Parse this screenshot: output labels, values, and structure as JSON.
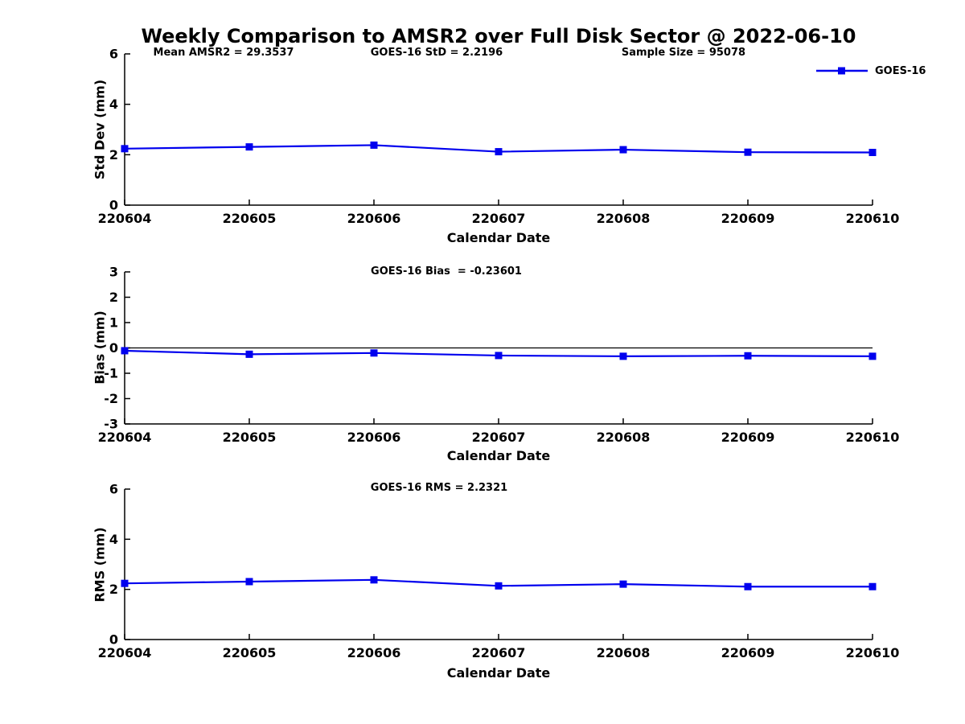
{
  "figure": {
    "title": "Weekly Comparison to AMSR2 over Full Disk Sector @ 2022-06-10",
    "background_color": "#ffffff",
    "axis_color": "#000000",
    "series_color": "#0000ee"
  },
  "legend": {
    "label": "GOES-16",
    "marker": "filled-square",
    "color": "#0000ee",
    "position": "top-right-outside"
  },
  "chart_data": [
    {
      "type": "line",
      "title": "",
      "xlabel": "Calendar Date",
      "ylabel": "Std Dev (mm)",
      "categories": [
        "220604",
        "220605",
        "220606",
        "220607",
        "220608",
        "220609",
        "220610"
      ],
      "series": [
        {
          "name": "GOES-16",
          "color": "#0000ee",
          "marker": "square",
          "values": [
            2.24,
            2.31,
            2.38,
            2.12,
            2.2,
            2.1,
            2.09
          ]
        }
      ],
      "ylim": [
        0,
        6
      ],
      "yticks": [
        0,
        2,
        4,
        6
      ],
      "grid": false,
      "zero_line": false,
      "annotations": [
        "Mean AMSR2 = 29.3537",
        "GOES-16 StD = 2.2196",
        "Sample Size = 95078"
      ]
    },
    {
      "type": "line",
      "title": "",
      "xlabel": "Calendar Date",
      "ylabel": "Bias (mm)",
      "categories": [
        "220604",
        "220605",
        "220606",
        "220607",
        "220608",
        "220609",
        "220610"
      ],
      "series": [
        {
          "name": "GOES-16",
          "color": "#0000ee",
          "marker": "square",
          "values": [
            -0.11,
            -0.25,
            -0.2,
            -0.3,
            -0.33,
            -0.31,
            -0.33
          ]
        }
      ],
      "ylim": [
        -3,
        3
      ],
      "yticks": [
        -3,
        -2,
        -1,
        0,
        1,
        2,
        3
      ],
      "grid": false,
      "zero_line": true,
      "annotations": [
        "GOES-16 Bias  = -0.23601"
      ]
    },
    {
      "type": "line",
      "title": "",
      "xlabel": "Calendar Date",
      "ylabel": "RMS (mm)",
      "categories": [
        "220604",
        "220605",
        "220606",
        "220607",
        "220608",
        "220609",
        "220610"
      ],
      "series": [
        {
          "name": "GOES-16",
          "color": "#0000ee",
          "marker": "square",
          "values": [
            2.24,
            2.31,
            2.38,
            2.14,
            2.21,
            2.11,
            2.11
          ]
        }
      ],
      "ylim": [
        0,
        6
      ],
      "yticks": [
        0,
        2,
        4,
        6
      ],
      "grid": false,
      "zero_line": false,
      "annotations": [
        "GOES-16 RMS = 2.2321"
      ]
    }
  ]
}
